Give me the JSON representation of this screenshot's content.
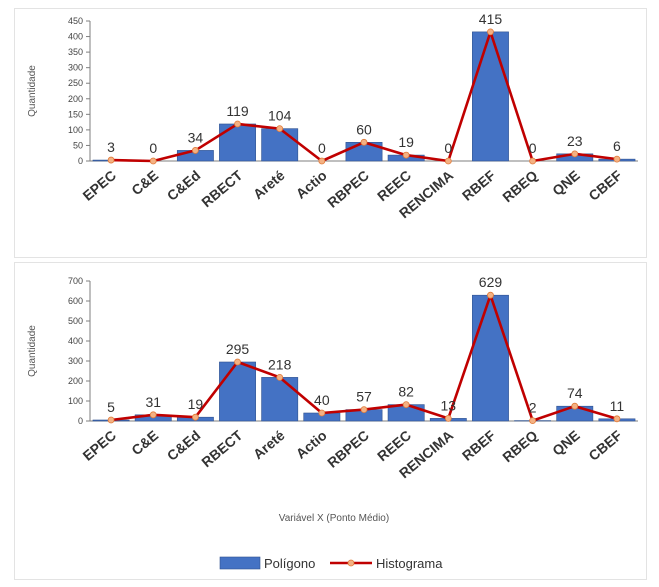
{
  "chart_data": [
    {
      "type": "bar",
      "ylabel": "Quantidade",
      "ylim": [
        0,
        450
      ],
      "yticks": [
        0,
        50,
        100,
        150,
        200,
        250,
        300,
        350,
        400,
        450
      ],
      "categories": [
        "EPEC",
        "C&E",
        "C&Ed",
        "RBECT",
        "Areté",
        "Actio",
        "RBPEC",
        "REEC",
        "RENCIMA",
        "RBEF",
        "RBEQ",
        "QNE",
        "CBEF"
      ],
      "series": [
        {
          "name": "Polígono",
          "type": "bar",
          "color": "#4472C4",
          "values": [
            3,
            0,
            34,
            119,
            104,
            0,
            60,
            19,
            0,
            415,
            0,
            23,
            6
          ]
        },
        {
          "name": "Histograma",
          "type": "line",
          "color": "#C00000",
          "values": [
            3,
            0,
            34,
            119,
            104,
            0,
            60,
            19,
            0,
            415,
            0,
            23,
            6
          ]
        }
      ],
      "data_labels": [
        "3",
        "0",
        "34",
        "119",
        "104",
        "0",
        "60",
        "19",
        "0",
        "415",
        "0",
        "23",
        "6"
      ],
      "grid": false
    },
    {
      "type": "bar",
      "ylabel": "Quantidade",
      "xlabel": "Variável X (Ponto Médio)",
      "ylim": [
        0,
        700
      ],
      "yticks": [
        0,
        100,
        200,
        300,
        400,
        500,
        600,
        700
      ],
      "categories": [
        "EPEC",
        "C&E",
        "C&Ed",
        "RBECT",
        "Areté",
        "Actio",
        "RBPEC",
        "REEC",
        "RENCIMA",
        "RBEF",
        "RBEQ",
        "QNE",
        "CBEF"
      ],
      "series": [
        {
          "name": "Polígono",
          "type": "bar",
          "color": "#4472C4",
          "values": [
            5,
            31,
            19,
            295,
            218,
            40,
            57,
            82,
            13,
            629,
            2,
            74,
            11
          ]
        },
        {
          "name": "Histograma",
          "type": "line",
          "color": "#C00000",
          "values": [
            5,
            31,
            19,
            295,
            218,
            40,
            57,
            82,
            13,
            629,
            2,
            74,
            11
          ]
        }
      ],
      "data_labels": [
        "5",
        "31",
        "19",
        "295",
        "218",
        "40",
        "57",
        "82",
        "13",
        "629",
        "2",
        "74",
        "11"
      ],
      "grid": false,
      "legend": {
        "position": "bottom-center",
        "entries": [
          "Polígono",
          "Histograma"
        ]
      }
    }
  ],
  "colors": {
    "bar": "#4472C4",
    "bar_edge": "#2F528F",
    "line": "#C00000",
    "marker": "#F4B183",
    "axis": "#7f7f7f"
  }
}
